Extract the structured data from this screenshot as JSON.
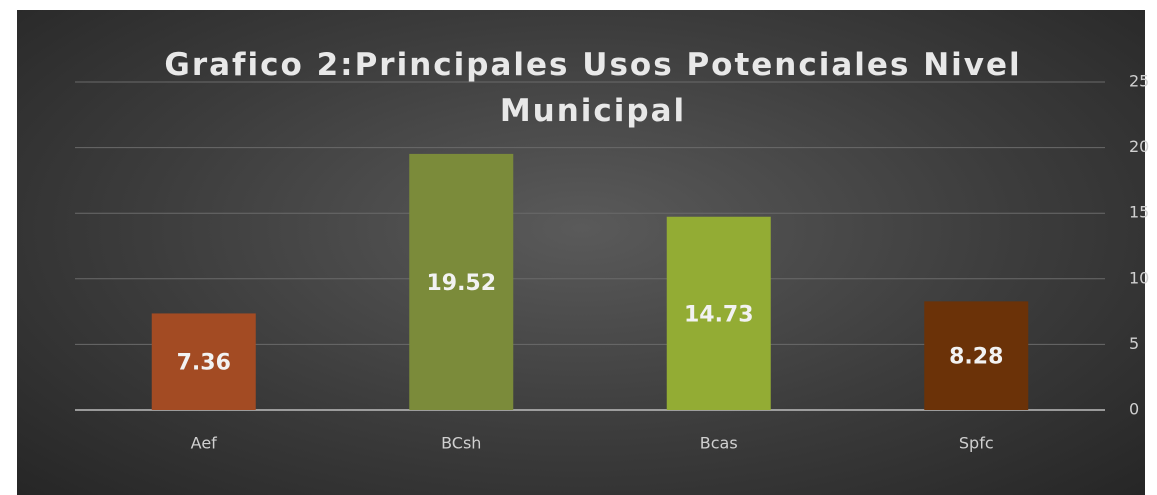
{
  "chart_data": {
    "type": "bar",
    "title": "Grafico 2:Principales Usos Potenciales Nivel Municipal",
    "categories": [
      "Aef",
      "BCsh",
      "Bcas",
      "Spfc"
    ],
    "values": [
      7.36,
      19.52,
      14.73,
      8.28
    ],
    "colors": [
      "#a34b23",
      "#7b8b3a",
      "#93ac34",
      "#6b3208"
    ],
    "ylim": [
      0,
      25
    ],
    "yticks": [
      0,
      5,
      10,
      15,
      20,
      25
    ],
    "grid": true,
    "y_axis_side": "right"
  }
}
